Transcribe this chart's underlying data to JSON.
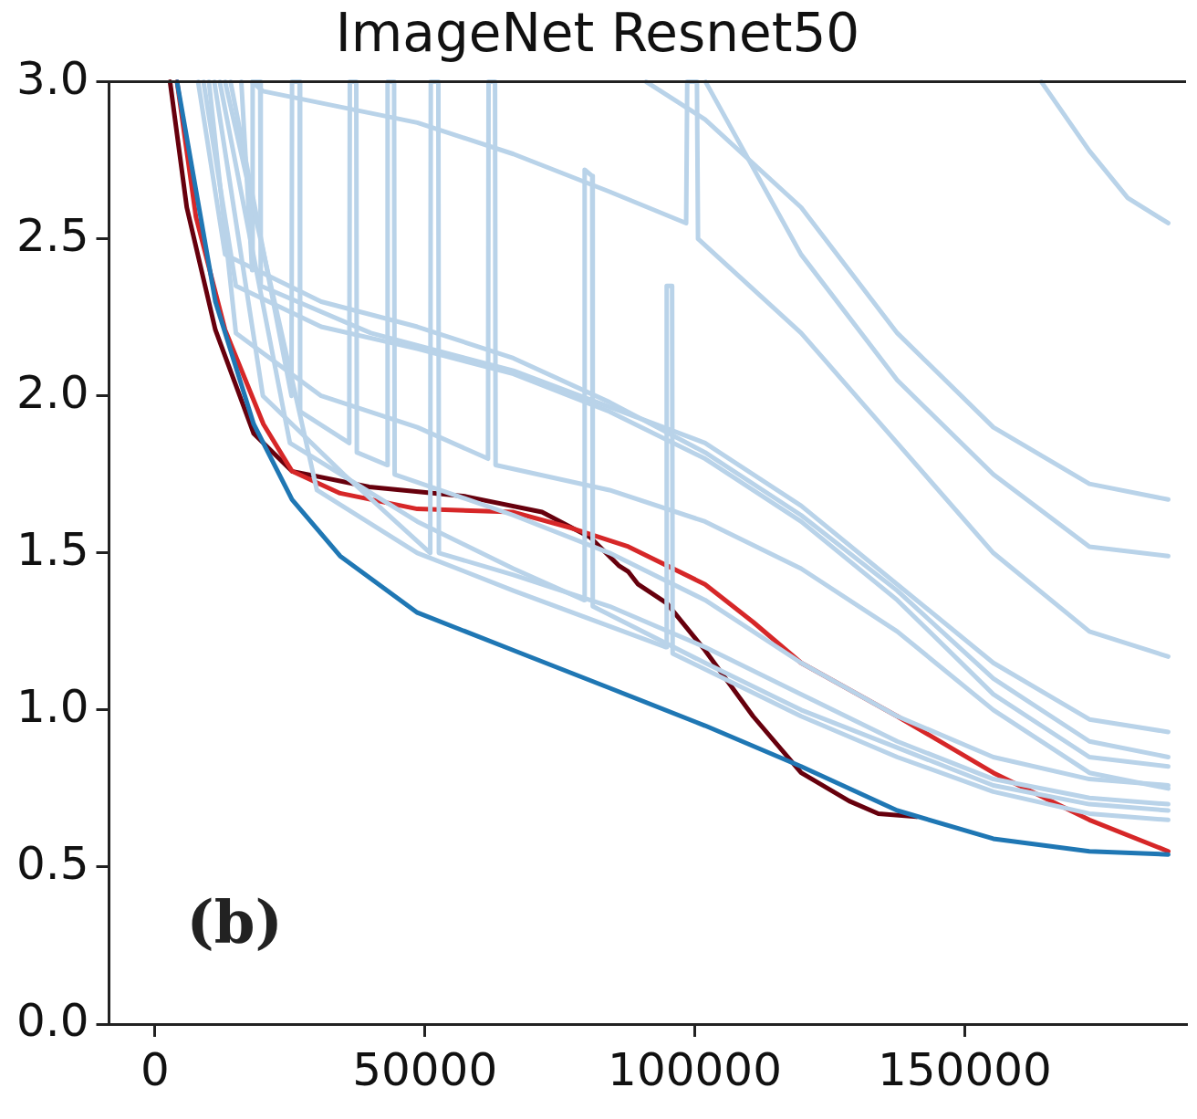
{
  "chart_data": {
    "type": "line",
    "title": "ImageNet Resnet50",
    "annotations": [
      "(b)"
    ],
    "xlim": [
      -8500,
      191000
    ],
    "xticks": [
      0,
      50000,
      100000,
      150000
    ],
    "ylim": [
      0,
      3
    ],
    "yticks": [
      {
        "value": 0,
        "label": "0.0"
      },
      {
        "value": 0.5,
        "label": "0.5"
      },
      {
        "value": 1,
        "label": "1.0"
      },
      {
        "value": 1.5,
        "label": "1.5"
      },
      {
        "value": 2,
        "label": "2.0"
      },
      {
        "value": 2.5,
        "label": "2.5"
      },
      {
        "value": 3,
        "label": "3.0"
      }
    ],
    "grid": false,
    "legend": false,
    "marker": "none",
    "line_style": "solid",
    "series": [
      {
        "color": "#b9d3e9",
        "x": [
          164200,
          173100,
          180200,
          187700
        ],
        "values": [
          3.0,
          2.78,
          2.63,
          2.55
        ]
      },
      {
        "color": "#b9d3e9",
        "x": [
          91000,
          101900,
          119700,
          137500,
          155300,
          173100,
          187700
        ],
        "values": [
          3.0,
          2.88,
          2.6,
          2.2,
          1.9,
          1.72,
          1.67
        ]
      },
      {
        "color": "#b9d3e9",
        "x": [
          18000,
          20000,
          48600,
          66400,
          84200,
          98400,
          98600,
          100400,
          100600,
          119700,
          137500,
          155300,
          173100,
          187700
        ],
        "values": [
          3.0,
          2.97,
          2.87,
          2.77,
          2.65,
          2.55,
          3.0,
          3.0,
          2.5,
          2.2,
          1.85,
          1.5,
          1.25,
          1.17
        ]
      },
      {
        "color": "#b9d3e9",
        "x": [
          102000,
          119700,
          137500,
          155300,
          173100,
          187700
        ],
        "values": [
          3.0,
          2.45,
          2.05,
          1.75,
          1.52,
          1.49
        ]
      },
      {
        "color": "#b9d3e9",
        "x": [
          8000,
          13000,
          30800,
          48600,
          66400,
          84200,
          101900,
          119700,
          137500,
          155300,
          173100,
          187700
        ],
        "values": [
          3.0,
          2.45,
          2.3,
          2.22,
          2.12,
          1.98,
          1.82,
          1.62,
          1.38,
          1.1,
          0.9,
          0.85
        ]
      },
      {
        "color": "#b9d3e9",
        "x": [
          9000,
          15000,
          30800,
          48600,
          66400,
          84200,
          101900,
          119700,
          137500,
          155300,
          173100,
          187700
        ],
        "values": [
          3.0,
          2.35,
          2.22,
          2.15,
          2.07,
          1.95,
          1.8,
          1.6,
          1.35,
          1.05,
          0.85,
          0.82
        ]
      },
      {
        "color": "#b9d3e9",
        "x": [
          10000,
          15000,
          30800,
          48600,
          61700,
          61800,
          63000,
          63100,
          84200,
          101900,
          119700,
          137500,
          155300,
          173100,
          187700
        ],
        "values": [
          3.0,
          2.2,
          2.0,
          1.9,
          1.8,
          3.0,
          3.0,
          1.78,
          1.7,
          1.6,
          1.45,
          1.25,
          1.0,
          0.8,
          0.75
        ]
      },
      {
        "color": "#b9d3e9",
        "x": [
          11000,
          20000,
          35000,
          51000,
          51100,
          52500,
          52600,
          66400,
          84200,
          101900,
          119700,
          137500,
          155300,
          173100,
          187700
        ],
        "values": [
          3.0,
          2.0,
          1.75,
          1.5,
          3.0,
          3.0,
          1.5,
          1.43,
          1.33,
          1.2,
          1.05,
          0.9,
          0.78,
          0.72,
          0.7
        ]
      },
      {
        "color": "#b9d3e9",
        "x": [
          12000,
          25000,
          48600,
          66400,
          79500,
          79600,
          81000,
          81100,
          101900,
          119700,
          137500,
          155300,
          173100,
          187700
        ],
        "values": [
          3.0,
          1.85,
          1.6,
          1.45,
          1.35,
          2.72,
          2.7,
          1.33,
          1.15,
          1.0,
          0.88,
          0.76,
          0.7,
          0.68
        ]
      },
      {
        "color": "#b9d3e9",
        "x": [
          13000,
          30000,
          48600,
          66400,
          94700,
          94800,
          95800,
          95900,
          119700,
          137500,
          155300,
          173100,
          187700
        ],
        "values": [
          3.0,
          1.7,
          1.5,
          1.38,
          1.2,
          2.35,
          2.35,
          1.18,
          0.98,
          0.85,
          0.74,
          0.67,
          0.65
        ]
      },
      {
        "color": "#b9d3e9",
        "x": [
          14000,
          25300,
          25400,
          26800,
          26900,
          36000,
          36100,
          37300,
          37400,
          43000,
          43100,
          44300,
          44400,
          66400,
          84200,
          101900,
          119700,
          137500,
          155300,
          173100,
          187700
        ],
        "values": [
          3.0,
          2.0,
          3.0,
          3.0,
          1.95,
          1.85,
          3.0,
          3.0,
          1.82,
          1.78,
          3.0,
          3.0,
          1.75,
          1.62,
          1.5,
          1.35,
          1.15,
          0.98,
          0.85,
          0.78,
          0.76
        ]
      },
      {
        "color": "#b9d3e9",
        "x": [
          16000,
          18000,
          18100,
          19500,
          19600,
          40000,
          66400,
          101900,
          119700,
          137500,
          155300,
          173100,
          187700
        ],
        "values": [
          3.0,
          2.4,
          3.0,
          3.0,
          2.35,
          2.2,
          2.08,
          1.85,
          1.65,
          1.4,
          1.15,
          0.97,
          0.93
        ]
      },
      {
        "color": "#1f77b4",
        "x": [
          4100,
          11200,
          18300,
          25400,
          34300,
          48600,
          66400,
          84200,
          101900,
          119700,
          137500,
          155300,
          173100,
          187700
        ],
        "values": [
          3.0,
          2.3,
          1.91,
          1.67,
          1.49,
          1.31,
          1.19,
          1.07,
          0.95,
          0.82,
          0.68,
          0.59,
          0.55,
          0.54
        ]
      },
      {
        "color": "#d62728",
        "x": [
          4100,
          7600,
          13000,
          20100,
          25400,
          34300,
          48600,
          66400,
          77000,
          87700,
          101900,
          110800,
          119700,
          137500,
          155300,
          173100,
          187700
        ],
        "values": [
          3.0,
          2.57,
          2.21,
          1.91,
          1.76,
          1.69,
          1.64,
          1.63,
          1.58,
          1.52,
          1.4,
          1.28,
          1.15,
          0.98,
          0.8,
          0.65,
          0.55
        ]
      },
      {
        "color": "#67000d",
        "x": [
          2800,
          5900,
          11200,
          18300,
          25400,
          39700,
          57500,
          71700,
          80600,
          85900,
          87700,
          89500,
          94800,
          101900,
          110800,
          119700,
          128600,
          134000,
          141100
        ],
        "values": [
          3.0,
          2.6,
          2.21,
          1.88,
          1.76,
          1.71,
          1.68,
          1.63,
          1.55,
          1.46,
          1.44,
          1.4,
          1.34,
          1.19,
          0.98,
          0.8,
          0.71,
          0.67,
          0.66
        ]
      }
    ]
  }
}
